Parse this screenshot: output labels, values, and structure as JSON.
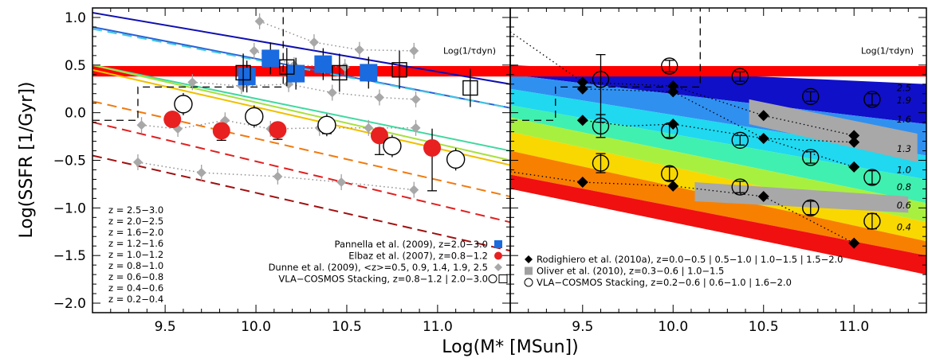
{
  "chart_data": {
    "type": "scatter",
    "xlabel": "Log(M* [MSun])",
    "ylabel": "Log(SSFR [1/Gyr])",
    "xlim": [
      9.1,
      11.4
    ],
    "ylim": [
      -2.1,
      1.1
    ],
    "xticks": [
      "9.5",
      "10.0",
      "10.5",
      "11.0"
    ],
    "yticks": [
      "1.0",
      "0.5",
      "0.0",
      "−0.5",
      "−1.0",
      "−1.5",
      "−2.0"
    ],
    "tdyn": {
      "label": "Log(1/τdyn)",
      "y_low": 0.38,
      "y_high": 0.49,
      "color": "#ff0000"
    },
    "panels": [
      {
        "name": "left",
        "z_lines": [
          {
            "label": "z = 2.5−3.0",
            "color": "#1010b0",
            "dash": false,
            "x": [
              9.1,
              11.4
            ],
            "y": [
              1.05,
              0.3
            ]
          },
          {
            "label": "z = 2.0−2.5",
            "color": "#2a62d6",
            "dash": false,
            "x": [
              9.1,
              11.4
            ],
            "y": [
              0.9,
              0.05
            ]
          },
          {
            "label": "z = 1.6−2.0",
            "color": "#40c8e0",
            "dash": true,
            "x": [
              9.1,
              11.4
            ],
            "y": [
              0.88,
              0.05
            ]
          },
          {
            "label": "z = 1.2−1.6",
            "color": "#40d8a0",
            "dash": false,
            "x": [
              9.1,
              11.4
            ],
            "y": [
              0.5,
              -0.4
            ]
          },
          {
            "label": "z = 1.0−1.2",
            "color": "#a8e040",
            "dash": false,
            "x": [
              9.1,
              11.4
            ],
            "y": [
              0.5,
              -0.5
            ]
          },
          {
            "label": "z = 0.8−1.0",
            "color": "#f0c000",
            "dash": false,
            "x": [
              9.1,
              11.4
            ],
            "y": [
              0.45,
              -0.55
            ]
          },
          {
            "label": "z = 0.6−0.8",
            "color": "#f07a10",
            "dash": true,
            "x": [
              9.1,
              11.4
            ],
            "y": [
              0.12,
              -0.88
            ]
          },
          {
            "label": "z = 0.4−0.6",
            "color": "#e02020",
            "dash": true,
            "x": [
              9.1,
              11.4
            ],
            "y": [
              -0.1,
              -1.15
            ]
          },
          {
            "label": "z = 0.2−0.4",
            "color": "#a01010",
            "dash": true,
            "x": [
              9.1,
              11.4
            ],
            "y": [
              -0.45,
              -1.45
            ]
          }
        ],
        "series": [
          {
            "name": "Pannella et al. (2009), z=2.0−3.0",
            "marker": "square",
            "color": "#1a6ae0",
            "x": [
              9.95,
              10.08,
              10.22,
              10.37,
              10.62
            ],
            "y": [
              0.38,
              0.57,
              0.41,
              0.51,
              0.42
            ]
          },
          {
            "name": "Elbaz et al. (2007), z=0.8−1.2",
            "marker": "circle",
            "color": "#e82020",
            "x": [
              9.54,
              9.81,
              10.12,
              10.39,
              10.68,
              10.97
            ],
            "y": [
              -0.07,
              -0.19,
              -0.18,
              -0.13,
              -0.24,
              -0.37
            ],
            "err": [
              0.0,
              0.1,
              0.1,
              0.09,
              0.2,
              0.45
            ]
          },
          {
            "name": "Dunne et al. (2009), <z>=0.5, 0.9, 1.4, 1.9, 2.5",
            "marker": "diamond",
            "color": "#a8a8a8",
            "x": [
              9.37,
              9.57,
              9.83,
              10.08,
              10.35,
              10.62,
              10.88,
              9.65,
              9.92,
              10.18,
              10.42,
              10.68,
              10.88,
              9.35,
              9.7,
              10.12,
              10.47,
              10.87,
              10.02,
              10.32,
              10.57,
              10.87,
              9.99,
              10.21,
              10.49
            ],
            "y": [
              -0.13,
              -0.17,
              -0.08,
              -0.17,
              -0.16,
              -0.16,
              -0.16,
              0.32,
              0.28,
              0.3,
              0.21,
              0.16,
              0.14,
              -0.52,
              -0.63,
              -0.67,
              -0.73,
              -0.81,
              0.96,
              0.74,
              0.66,
              0.65,
              0.65,
              0.5,
              0.48
            ]
          },
          {
            "name": "VLA−COSMOS Stacking, z=0.8−1.2 | 2.0−3.0",
            "marker": "open",
            "color": "#000000",
            "circles_x": [
              9.6,
              9.99,
              10.39,
              10.75,
              11.1
            ],
            "circles_y": [
              0.09,
              -0.04,
              -0.13,
              -0.35,
              -0.49
            ],
            "squares_x": [
              9.93,
              10.17,
              10.46,
              10.79,
              11.18
            ],
            "squares_y": [
              0.42,
              0.48,
              0.42,
              0.45,
              0.26
            ]
          }
        ],
        "z_legend_title": "",
        "legend": [
          "Pannella et al. (2009), z=2.0−3.0",
          "Elbaz et al. (2007), z=0.8−1.2",
          "Dunne et al. (2009), <z>=0.5, 0.9, 1.4, 1.9, 2.5",
          "VLA−COSMOS Stacking, z=0.8−1.2 | 2.0−3.0"
        ]
      },
      {
        "name": "right",
        "bands": [
          {
            "label": "2.5",
            "color": "#1010c8"
          },
          {
            "label": "1.9",
            "color": "#3090f0"
          },
          {
            "label": "1.6",
            "color": "#20d8f0"
          },
          {
            "label": "1.3",
            "color": "#40f0b0"
          },
          {
            "label": "1.0",
            "color": "#a8f040"
          },
          {
            "label": "0.8",
            "color": "#f8d800"
          },
          {
            "label": "0.6",
            "color": "#f88000"
          },
          {
            "label": "0.4",
            "color": "#f01010"
          }
        ],
        "series": [
          {
            "name": "Rodighiero et al. (2010a), z=0.0−0.5 | 0.5−1.0 | 1.0−1.5 | 1.5−2.0",
            "marker": "diamond-filled",
            "color": "#000000",
            "x": [
              9.5,
              9.5,
              9.5,
              9.5,
              10.0,
              10.0,
              10.0,
              10.0,
              10.5,
              10.5,
              10.5,
              11.0,
              11.0,
              11.0,
              11.0
            ],
            "y": [
              0.32,
              0.25,
              -0.08,
              -0.73,
              0.28,
              0.22,
              -0.12,
              -0.77,
              -0.03,
              -0.27,
              -0.88,
              -0.24,
              -0.31,
              -0.57,
              -1.37
            ]
          },
          {
            "name": "Oliver et al. (2010), z=0.3−0.6 | 1.0−1.5",
            "marker": "gray-box",
            "color": "#a0a0a0"
          },
          {
            "name": "VLA−COSMOS Stacking, z=0.2−0.6 | 0.6−1.0 | 1.6−2.0",
            "marker": "open-circle",
            "color": "#000000",
            "x": [
              9.6,
              9.6,
              9.6,
              9.98,
              9.98,
              9.98,
              10.37,
              10.37,
              10.37,
              10.76,
              10.76,
              10.76,
              11.1,
              11.1,
              11.1
            ],
            "y": [
              0.35,
              -0.14,
              -0.53,
              0.49,
              -0.19,
              -0.64,
              0.38,
              -0.29,
              -0.78,
              0.17,
              -0.47,
              -1.0,
              0.14,
              -0.68,
              -1.14
            ]
          }
        ],
        "legend": [
          "Rodighiero et al. (2010a), z=0.0−0.5 | 0.5−1.0 | 1.0−1.5 | 1.5−2.0",
          "Oliver et al. (2010), z=0.3−0.6 | 1.0−1.5",
          "VLA−COSMOS Stacking, z=0.2−0.6 | 0.6−1.0 | 1.6−2.0"
        ]
      }
    ]
  }
}
